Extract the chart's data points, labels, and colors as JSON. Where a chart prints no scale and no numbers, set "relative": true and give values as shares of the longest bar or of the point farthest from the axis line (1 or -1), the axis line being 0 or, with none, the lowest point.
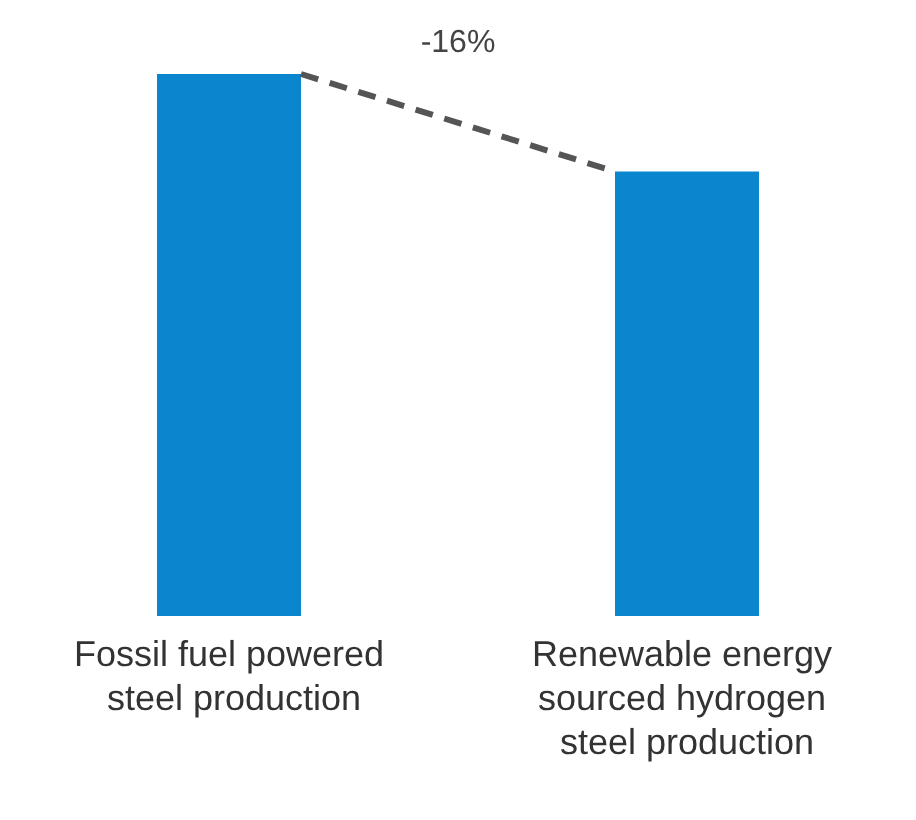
{
  "chart_data": {
    "type": "bar",
    "relative": true,
    "categories": [
      "Fossil fuel powered steel production",
      "Renewable energy sourced hydrogen steel production"
    ],
    "values": [
      1,
      0.82
    ],
    "color": "#0a86cf",
    "annotations": [
      "-16%"
    ]
  }
}
